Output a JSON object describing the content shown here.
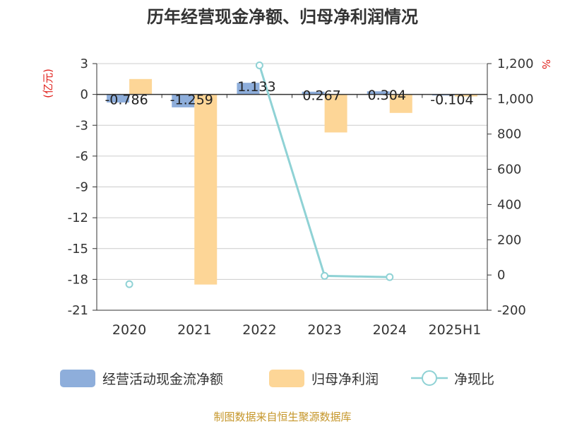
{
  "chart_data": {
    "type": "bar",
    "title": "历年经营现金净额、归母净利润情况",
    "categories": [
      "2020",
      "2021",
      "2022",
      "2023",
      "2024",
      "2025H1"
    ],
    "left_axis": {
      "unit": "(亿元)",
      "ylim": [
        -21,
        3
      ],
      "ticks": [
        "3",
        "0",
        "-3",
        "-6",
        "-9",
        "-12",
        "-15",
        "-18",
        "-21"
      ]
    },
    "right_axis": {
      "unit": "%",
      "ylim": [
        -200,
        1200
      ],
      "ticks": [
        "1,200",
        "1,000",
        "800",
        "600",
        "400",
        "200",
        "0",
        "-200"
      ]
    },
    "series": [
      {
        "name": "经营活动现金流净额",
        "kind": "bar",
        "axis": "left",
        "color": "#8eaedb",
        "values": [
          -0.786,
          -1.259,
          1.133,
          0.267,
          0.304,
          -0.104
        ],
        "labels": [
          "-0.786",
          "-1.259",
          "1.133",
          "0.267",
          "0.304",
          "-0.104"
        ]
      },
      {
        "name": "归母净利润",
        "kind": "bar",
        "axis": "left",
        "color": "#fdd697",
        "values": [
          1.5,
          -18.5,
          0.05,
          -3.7,
          -1.8,
          -0.2
        ]
      },
      {
        "name": "净现比",
        "kind": "line",
        "axis": "right",
        "color": "#8fd2d5",
        "values": [
          -52,
          null,
          1190,
          -5,
          -12,
          null
        ]
      }
    ],
    "grid": true,
    "legend": "bottom"
  },
  "source": "制图数据来自恒生聚源数据库"
}
